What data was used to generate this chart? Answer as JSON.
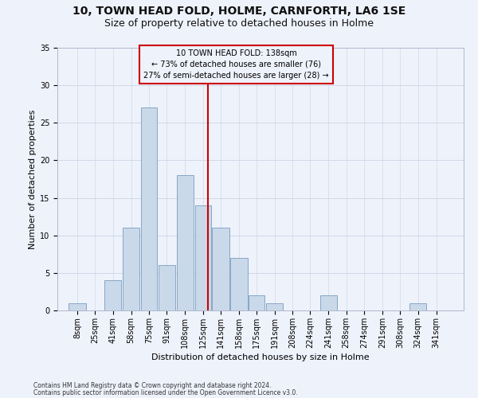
{
  "title": "10, TOWN HEAD FOLD, HOLME, CARNFORTH, LA6 1SE",
  "subtitle": "Size of property relative to detached houses in Holme",
  "xlabel": "Distribution of detached houses by size in Holme",
  "ylabel": "Number of detached properties",
  "footnote1": "Contains HM Land Registry data © Crown copyright and database right 2024.",
  "footnote2": "Contains public sector information licensed under the Open Government Licence v3.0.",
  "annotation_title": "10 TOWN HEAD FOLD: 138sqm",
  "annotation_line1": "← 73% of detached houses are smaller (76)",
  "annotation_line2": "27% of semi-detached houses are larger (28) →",
  "bar_color": "#c9d9ea",
  "bar_edge_color": "#7a9dbf",
  "ref_line_color": "#cc0000",
  "annotation_box_color": "#cc0000",
  "bg_color": "#eef2fb",
  "grid_color": "#d0d8e8",
  "categories": [
    "8sqm",
    "25sqm",
    "41sqm",
    "58sqm",
    "75sqm",
    "91sqm",
    "108sqm",
    "125sqm",
    "141sqm",
    "158sqm",
    "175sqm",
    "191sqm",
    "208sqm",
    "224sqm",
    "241sqm",
    "258sqm",
    "274sqm",
    "291sqm",
    "308sqm",
    "324sqm",
    "341sqm"
  ],
  "values": [
    1,
    0,
    4,
    11,
    27,
    6,
    18,
    14,
    11,
    7,
    2,
    1,
    0,
    0,
    2,
    0,
    0,
    0,
    0,
    1,
    0
  ],
  "bin_edges": [
    8,
    25,
    41,
    58,
    75,
    91,
    108,
    125,
    141,
    158,
    175,
    191,
    208,
    224,
    241,
    258,
    274,
    291,
    308,
    324,
    341,
    358
  ],
  "ref_line_x": 138,
  "ylim": [
    0,
    35
  ],
  "yticks": [
    0,
    5,
    10,
    15,
    20,
    25,
    30,
    35
  ],
  "title_fontsize": 10,
  "subtitle_fontsize": 9,
  "ylabel_fontsize": 8,
  "xlabel_fontsize": 8,
  "tick_fontsize": 7,
  "footnote_fontsize": 5.5
}
